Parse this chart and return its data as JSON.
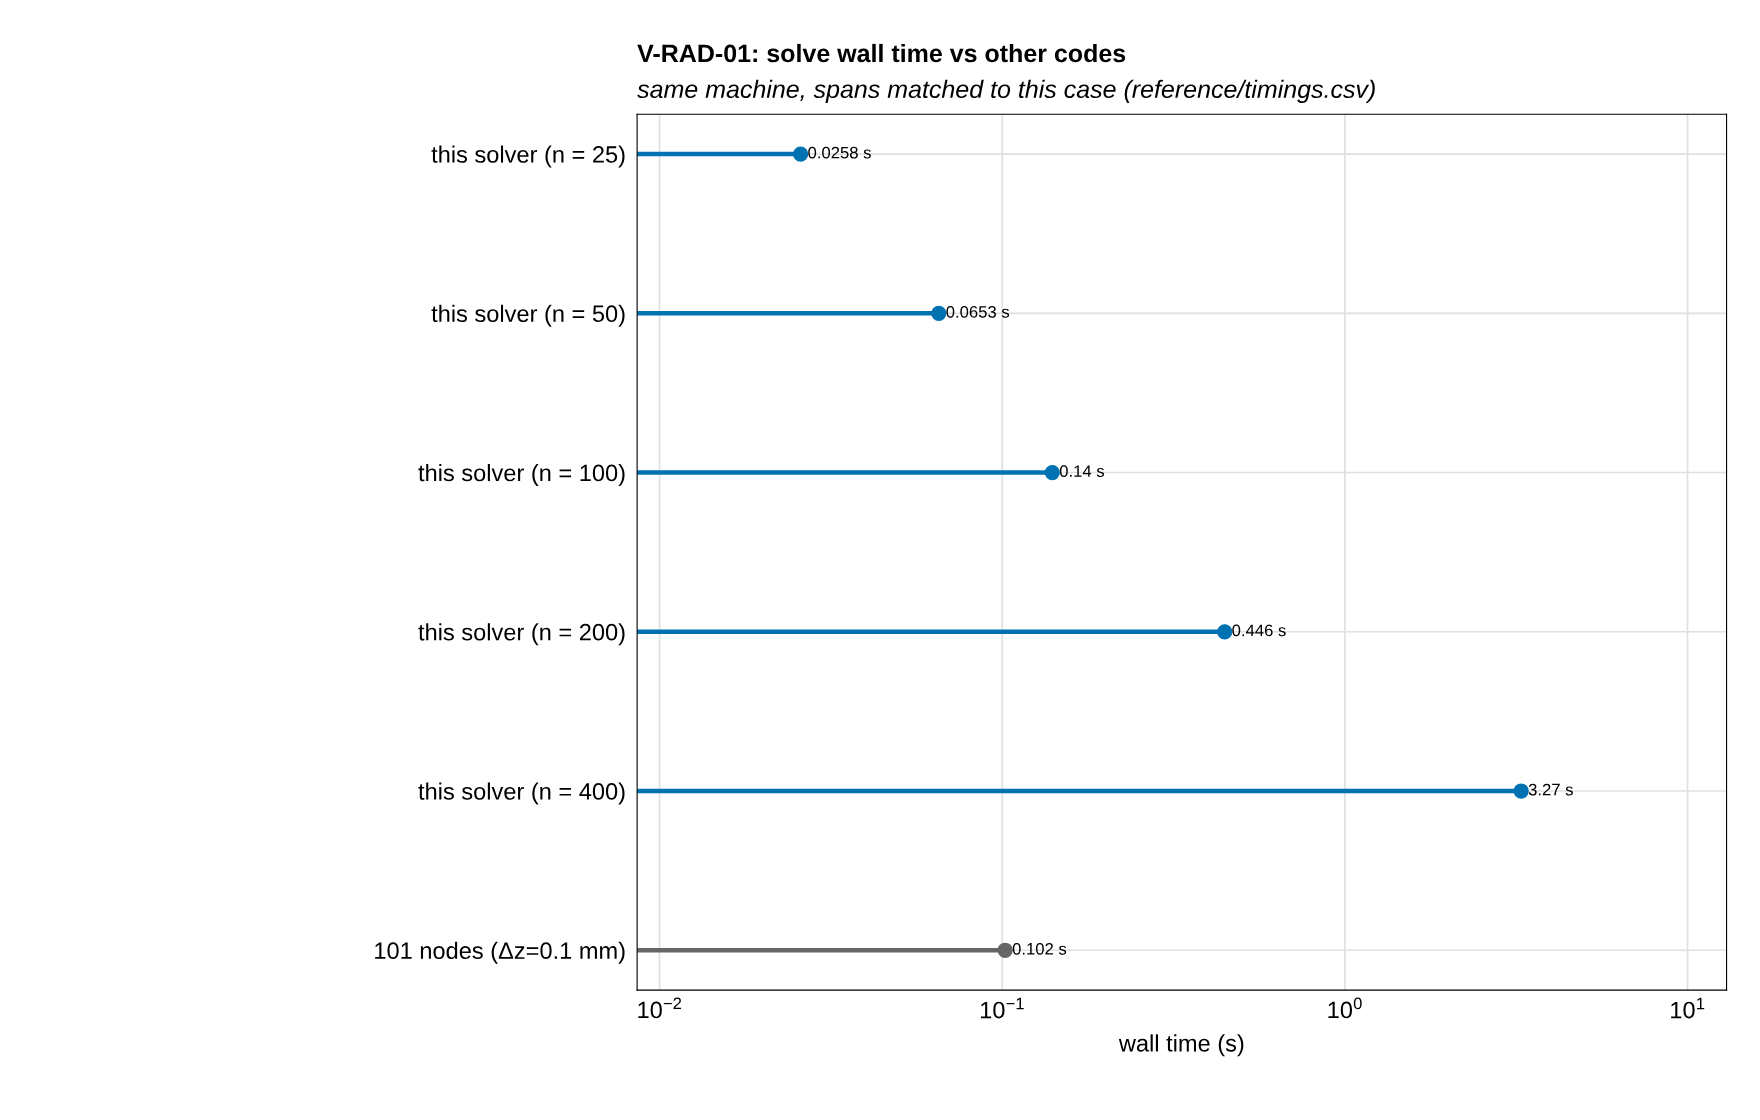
{
  "chart_data": {
    "type": "lollipop",
    "orientation": "horizontal",
    "title": "V-RAD-01: solve wall time vs other codes",
    "subtitle": "same machine, spans matched to this case (reference/timings.csv)",
    "xlabel": "wall time (s)",
    "categories": [
      "this solver (n = 25)",
      "this solver (n = 50)",
      "this solver (n = 100)",
      "this solver (n = 200)",
      "this solver (n = 400)",
      "101 nodes (Δz=0.1 mm)"
    ],
    "values": [
      0.0258,
      0.0653,
      0.14,
      0.446,
      3.27,
      0.102
    ],
    "colors": [
      "#0072b2",
      "#0072b2",
      "#0072b2",
      "#0072b2",
      "#0072b2",
      "#666666"
    ],
    "value_labels": [
      "0.0258 s",
      "0.0653 s",
      "0.14 s",
      "0.446 s",
      "3.27 s",
      "0.102 s"
    ],
    "log": "x",
    "xlim": [
      0.0086,
      13
    ],
    "xticks": [
      {
        "value": 0.01,
        "label": "10$^{−2}$"
      },
      {
        "value": 0.1,
        "label": "10$^{−1}$"
      },
      {
        "value": 1,
        "label": "10$^{0}$"
      },
      {
        "value": 10,
        "label": "10$^{1}$"
      }
    ],
    "grid": true,
    "marker": "circle"
  }
}
